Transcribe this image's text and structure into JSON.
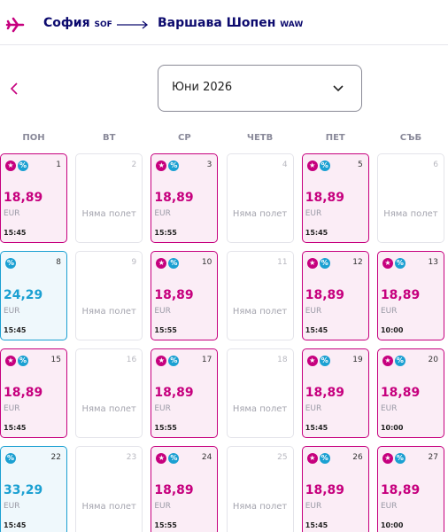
{
  "header": {
    "origin": "София",
    "origin_code": "SOF",
    "destination": "Варшава Шопен",
    "destination_code": "WAW"
  },
  "month_selector": {
    "label": "Юни 2026"
  },
  "weekdays": [
    "ПОН",
    "ВТ",
    "СР",
    "ЧЕТВ",
    "ПЕТ",
    "СЪБ"
  ],
  "days": [
    {
      "day": 1,
      "price": "18,89",
      "currency": "EUR",
      "time": "15:45",
      "color": "#c6007e",
      "star": true
    },
    {
      "day": 2,
      "note": "Няма полет"
    },
    {
      "day": 3,
      "price": "18,89",
      "currency": "EUR",
      "time": "15:55",
      "color": "#c6007e",
      "star": true
    },
    {
      "day": 4,
      "note": "Няма полет"
    },
    {
      "day": 5,
      "price": "18,89",
      "currency": "EUR",
      "time": "15:45",
      "color": "#c6007e",
      "star": true
    },
    {
      "day": 6,
      "note": "Няма полет"
    },
    {
      "day": 8,
      "price": "24,29",
      "currency": "EUR",
      "time": "15:45",
      "color": "#1ba0d2",
      "star": false
    },
    {
      "day": 9,
      "note": "Няма полет"
    },
    {
      "day": 10,
      "price": "18,89",
      "currency": "EUR",
      "time": "15:55",
      "color": "#c6007e",
      "star": true
    },
    {
      "day": 11,
      "note": "Няма полет"
    },
    {
      "day": 12,
      "price": "18,89",
      "currency": "EUR",
      "time": "15:45",
      "color": "#c6007e",
      "star": true
    },
    {
      "day": 13,
      "price": "18,89",
      "currency": "EUR",
      "time": "10:00",
      "color": "#c6007e",
      "star": true
    },
    {
      "day": 15,
      "price": "18,89",
      "currency": "EUR",
      "time": "15:45",
      "color": "#c6007e",
      "star": true
    },
    {
      "day": 16,
      "note": "Няма полет"
    },
    {
      "day": 17,
      "price": "18,89",
      "currency": "EUR",
      "time": "15:55",
      "color": "#c6007e",
      "star": true
    },
    {
      "day": 18,
      "note": "Няма полет"
    },
    {
      "day": 19,
      "price": "18,89",
      "currency": "EUR",
      "time": "15:45",
      "color": "#c6007e",
      "star": true
    },
    {
      "day": 20,
      "price": "18,89",
      "currency": "EUR",
      "time": "10:00",
      "color": "#c6007e",
      "star": true
    },
    {
      "day": 22,
      "price": "33,29",
      "currency": "EUR",
      "time": "15:45",
      "color": "#1ba0d2",
      "star": false
    },
    {
      "day": 23,
      "note": "Няма полет"
    },
    {
      "day": 24,
      "price": "18,89",
      "currency": "EUR",
      "time": "15:55",
      "color": "#c6007e",
      "star": true
    },
    {
      "day": 25,
      "note": "Няма полет"
    },
    {
      "day": 26,
      "price": "18,89",
      "currency": "EUR",
      "time": "15:45",
      "color": "#c6007e",
      "star": true
    },
    {
      "day": 27,
      "price": "18,89",
      "currency": "EUR",
      "time": "10:00",
      "color": "#c6007e",
      "star": true
    }
  ]
}
